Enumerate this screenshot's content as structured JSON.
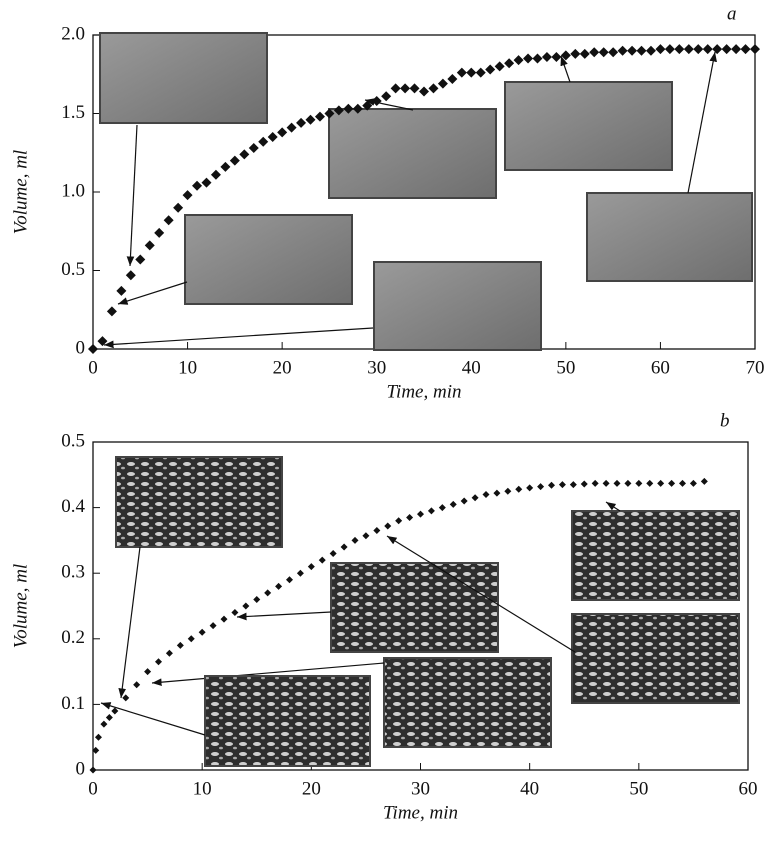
{
  "chart_data": [
    {
      "type": "scatter",
      "panel_label": "a",
      "xlabel": "Time, min",
      "ylabel": "Volume, ml",
      "color": "#111111",
      "xlim": [
        0,
        70
      ],
      "xticks": [
        0,
        10,
        20,
        30,
        40,
        50,
        60,
        70
      ],
      "ylim": [
        0,
        2
      ],
      "yticks": [
        0,
        0.5,
        {
          "value": 1,
          "label": "1.0"
        },
        1.5,
        {
          "value": 2,
          "label": "2.0"
        }
      ],
      "x": [
        0,
        1,
        2,
        3,
        4,
        5,
        6,
        7,
        8,
        9,
        10,
        11,
        12,
        13,
        14,
        15,
        16,
        17,
        18,
        19,
        20,
        21,
        22,
        23,
        24,
        25,
        26,
        27,
        28,
        29,
        30,
        31,
        32,
        33,
        34,
        35,
        36,
        37,
        38,
        39,
        40,
        41,
        42,
        43,
        44,
        45,
        46,
        47,
        48,
        49,
        50,
        51,
        52,
        53,
        54,
        55,
        56,
        57,
        58,
        59,
        60,
        61,
        62,
        63,
        64,
        65,
        66,
        67,
        68,
        69,
        70
      ],
      "values": [
        0,
        0.05,
        0.24,
        0.37,
        0.47,
        0.57,
        0.66,
        0.74,
        0.82,
        0.9,
        0.98,
        1.04,
        1.06,
        1.11,
        1.16,
        1.2,
        1.24,
        1.28,
        1.32,
        1.35,
        1.38,
        1.41,
        1.44,
        1.46,
        1.48,
        1.5,
        1.52,
        1.53,
        1.53,
        1.55,
        1.58,
        1.61,
        1.66,
        1.66,
        1.66,
        1.64,
        1.66,
        1.69,
        1.72,
        1.76,
        1.76,
        1.76,
        1.78,
        1.8,
        1.82,
        1.84,
        1.85,
        1.85,
        1.86,
        1.86,
        1.87,
        1.88,
        1.88,
        1.89,
        1.89,
        1.89,
        1.9,
        1.9,
        1.9,
        1.9,
        1.91,
        1.91,
        1.91,
        1.91,
        1.91,
        1.91,
        1.91,
        1.91,
        1.91,
        1.91,
        1.91
      ]
    },
    {
      "type": "scatter",
      "panel_label": "b",
      "xlabel": "Time, min",
      "ylabel": "Volume, ml",
      "color": "#111111",
      "xlim": [
        0,
        60
      ],
      "xticks": [
        0,
        10,
        20,
        30,
        40,
        50,
        60
      ],
      "ylim": [
        0,
        0.5
      ],
      "yticks": [
        0,
        0.1,
        0.2,
        0.3,
        0.4,
        0.5
      ],
      "x": [
        0,
        0.25,
        0.5,
        1,
        1.5,
        2,
        3,
        4,
        5,
        6,
        7,
        8,
        9,
        10,
        11,
        12,
        13,
        14,
        15,
        16,
        17,
        18,
        19,
        20,
        21,
        22,
        23,
        24,
        25,
        26,
        27,
        28,
        29,
        30,
        31,
        32,
        33,
        34,
        35,
        36,
        37,
        38,
        39,
        40,
        41,
        42,
        43,
        44,
        45,
        46,
        47,
        48,
        49,
        50,
        51,
        52,
        53,
        54,
        55,
        56
      ],
      "values": [
        0,
        0.03,
        0.05,
        0.07,
        0.08,
        0.09,
        0.11,
        0.13,
        0.15,
        0.165,
        0.178,
        0.19,
        0.2,
        0.21,
        0.22,
        0.23,
        0.24,
        0.25,
        0.26,
        0.27,
        0.28,
        0.29,
        0.3,
        0.31,
        0.32,
        0.33,
        0.34,
        0.35,
        0.357,
        0.365,
        0.372,
        0.38,
        0.385,
        0.39,
        0.395,
        0.4,
        0.405,
        0.41,
        0.415,
        0.42,
        0.422,
        0.425,
        0.428,
        0.43,
        0.432,
        0.434,
        0.435,
        0.435,
        0.436,
        0.437,
        0.437,
        0.437,
        0.437,
        0.437,
        0.437,
        0.437,
        0.437,
        0.437,
        0.437,
        0.44
      ]
    }
  ]
}
